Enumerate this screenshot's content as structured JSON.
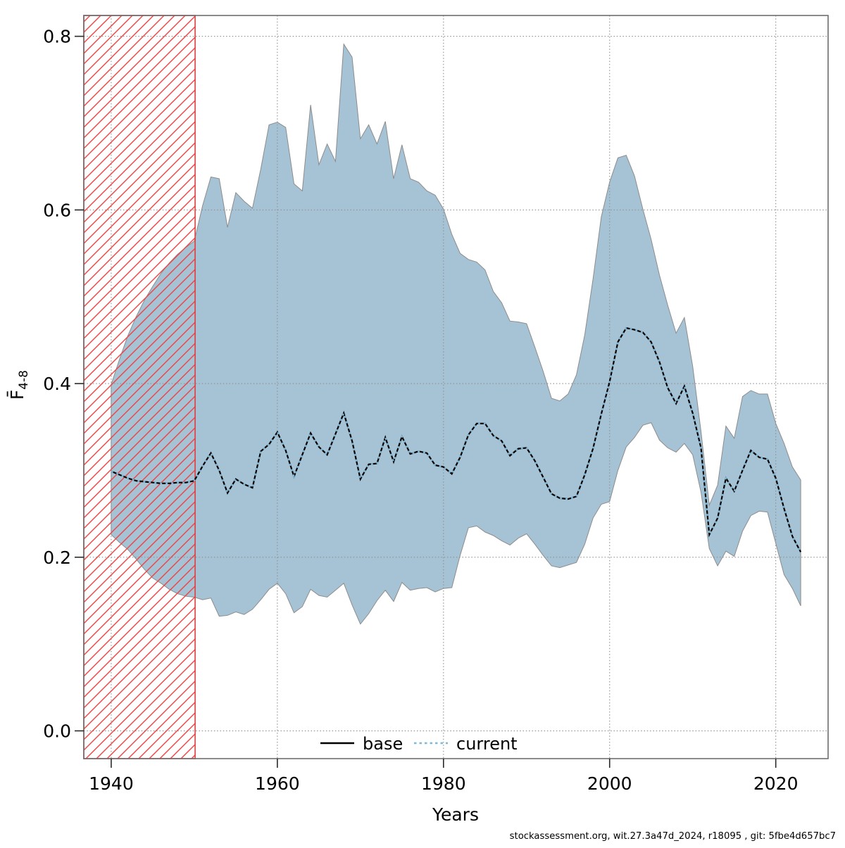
{
  "footer": {
    "credit": "stockassessment.org, wit.27.3a47d_2024, r18095 , git: 5fbe4d657bc7"
  },
  "legend": {
    "items": [
      {
        "label": "base",
        "line_style": "solid",
        "color": "#000000"
      },
      {
        "label": "current",
        "line_style": "dotted",
        "color": "#7fb8d8"
      }
    ]
  },
  "chart_data": {
    "type": "line",
    "title": "",
    "xlabel": "Years",
    "ylabel_main": "F̄",
    "ylabel_sub": "4-8",
    "xlim": [
      1936.7,
      2026.3
    ],
    "ylim": [
      -0.032,
      0.824
    ],
    "xticks": [
      1940,
      1960,
      1980,
      2000,
      2020
    ],
    "xtick_labels": [
      "1940",
      "1960",
      "1980",
      "2000",
      "2020"
    ],
    "yticks": [
      0.0,
      0.2,
      0.4,
      0.6,
      0.8
    ],
    "ytick_labels": [
      "0.0",
      "0.2",
      "0.4",
      "0.6",
      "0.8"
    ],
    "grid": true,
    "legend_position": "bottom-center-inside",
    "hatch_region": {
      "from": 1936.7,
      "to": 1950.1
    },
    "years": [
      1940,
      1941,
      1942,
      1943,
      1944,
      1945,
      1946,
      1947,
      1948,
      1949,
      1950,
      1951,
      1952,
      1953,
      1954,
      1955,
      1956,
      1957,
      1958,
      1959,
      1960,
      1961,
      1962,
      1963,
      1964,
      1965,
      1966,
      1967,
      1968,
      1969,
      1970,
      1971,
      1972,
      1973,
      1974,
      1975,
      1976,
      1977,
      1978,
      1979,
      1980,
      1981,
      1982,
      1983,
      1984,
      1985,
      1986,
      1987,
      1988,
      1989,
      1990,
      1991,
      1992,
      1993,
      1994,
      1995,
      1996,
      1997,
      1998,
      1999,
      2000,
      2001,
      2002,
      2003,
      2004,
      2005,
      2006,
      2007,
      2008,
      2009,
      2010,
      2011,
      2012,
      2013,
      2014,
      2015,
      2016,
      2017,
      2018,
      2019,
      2020,
      2021,
      2022,
      2023
    ],
    "series": [
      {
        "name": "base",
        "style": "solid",
        "color": "#000000",
        "values": [
          0.299,
          0.295,
          0.291,
          0.288,
          0.287,
          0.286,
          0.285,
          0.285,
          0.286,
          0.286,
          0.288,
          0.305,
          0.32,
          0.3,
          0.274,
          0.29,
          0.284,
          0.28,
          0.322,
          0.33,
          0.344,
          0.323,
          0.293,
          0.318,
          0.343,
          0.327,
          0.318,
          0.342,
          0.366,
          0.334,
          0.29,
          0.307,
          0.308,
          0.338,
          0.31,
          0.339,
          0.319,
          0.322,
          0.32,
          0.306,
          0.304,
          0.296,
          0.315,
          0.341,
          0.354,
          0.354,
          0.34,
          0.334,
          0.317,
          0.325,
          0.326,
          0.311,
          0.292,
          0.273,
          0.268,
          0.267,
          0.27,
          0.295,
          0.325,
          0.365,
          0.402,
          0.448,
          0.464,
          0.462,
          0.459,
          0.448,
          0.425,
          0.395,
          0.377,
          0.397,
          0.366,
          0.326,
          0.226,
          0.245,
          0.291,
          0.276,
          0.3,
          0.323,
          0.315,
          0.313,
          0.291,
          0.256,
          0.224,
          0.206
        ]
      },
      {
        "name": "current",
        "style": "dotted",
        "color": "#7fb8d8",
        "values": [
          0.299,
          0.295,
          0.291,
          0.288,
          0.287,
          0.286,
          0.285,
          0.285,
          0.286,
          0.286,
          0.288,
          0.305,
          0.32,
          0.3,
          0.274,
          0.29,
          0.284,
          0.28,
          0.322,
          0.33,
          0.344,
          0.323,
          0.293,
          0.318,
          0.343,
          0.327,
          0.318,
          0.342,
          0.366,
          0.334,
          0.29,
          0.307,
          0.308,
          0.338,
          0.31,
          0.339,
          0.319,
          0.322,
          0.32,
          0.306,
          0.304,
          0.296,
          0.315,
          0.341,
          0.354,
          0.354,
          0.34,
          0.334,
          0.317,
          0.325,
          0.326,
          0.311,
          0.292,
          0.273,
          0.268,
          0.267,
          0.27,
          0.295,
          0.325,
          0.365,
          0.402,
          0.448,
          0.464,
          0.462,
          0.459,
          0.448,
          0.425,
          0.395,
          0.377,
          0.397,
          0.366,
          0.326,
          0.226,
          0.245,
          0.291,
          0.276,
          0.3,
          0.323,
          0.315,
          0.313,
          0.291,
          0.256,
          0.224,
          0.206
        ]
      }
    ],
    "band": {
      "name": "confidence-band",
      "fill": "#a6c3d6",
      "lo": [
        0.226,
        0.217,
        0.209,
        0.198,
        0.186,
        0.176,
        0.17,
        0.163,
        0.158,
        0.155,
        0.154,
        0.151,
        0.153,
        0.132,
        0.133,
        0.137,
        0.134,
        0.14,
        0.151,
        0.163,
        0.17,
        0.158,
        0.136,
        0.143,
        0.163,
        0.156,
        0.154,
        0.162,
        0.17,
        0.145,
        0.123,
        0.135,
        0.15,
        0.162,
        0.149,
        0.171,
        0.162,
        0.164,
        0.165,
        0.16,
        0.164,
        0.165,
        0.202,
        0.234,
        0.236,
        0.229,
        0.225,
        0.219,
        0.214,
        0.222,
        0.227,
        0.215,
        0.202,
        0.19,
        0.188,
        0.191,
        0.194,
        0.215,
        0.245,
        0.261,
        0.264,
        0.3,
        0.327,
        0.338,
        0.352,
        0.355,
        0.335,
        0.326,
        0.321,
        0.331,
        0.318,
        0.275,
        0.21,
        0.19,
        0.207,
        0.201,
        0.23,
        0.248,
        0.253,
        0.252,
        0.216,
        0.18,
        0.164,
        0.144
      ],
      "hi": [
        0.399,
        0.428,
        0.455,
        0.477,
        0.496,
        0.512,
        0.527,
        0.539,
        0.549,
        0.557,
        0.564,
        0.605,
        0.638,
        0.636,
        0.58,
        0.62,
        0.61,
        0.602,
        0.647,
        0.698,
        0.701,
        0.695,
        0.63,
        0.622,
        0.721,
        0.652,
        0.676,
        0.656,
        0.791,
        0.776,
        0.682,
        0.698,
        0.676,
        0.702,
        0.636,
        0.675,
        0.636,
        0.632,
        0.622,
        0.617,
        0.601,
        0.572,
        0.55,
        0.543,
        0.54,
        0.531,
        0.506,
        0.493,
        0.472,
        0.471,
        0.469,
        0.442,
        0.414,
        0.383,
        0.38,
        0.388,
        0.41,
        0.456,
        0.52,
        0.592,
        0.632,
        0.66,
        0.663,
        0.639,
        0.601,
        0.566,
        0.525,
        0.49,
        0.458,
        0.476,
        0.42,
        0.345,
        0.26,
        0.283,
        0.351,
        0.337,
        0.385,
        0.392,
        0.388,
        0.388,
        0.354,
        0.331,
        0.304,
        0.289
      ]
    },
    "colors": {
      "band_fill": "#a6c3d6",
      "band_edge": "#8c8c8c",
      "base_line": "#000000",
      "current_line": "#7fb8d8",
      "hatch_red": "#ee4444",
      "hatch_border": "#e03e3e",
      "grid": "#8f8f8f",
      "box": "#6e6e6e",
      "tick": "#2a2a2a"
    }
  }
}
